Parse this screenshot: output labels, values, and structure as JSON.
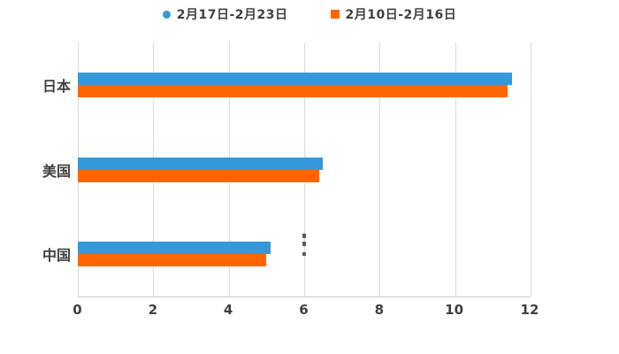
{
  "chart_data": {
    "type": "bar",
    "orientation": "horizontal",
    "title": "",
    "xlabel": "",
    "ylabel": "",
    "categories": [
      "日本",
      "美国",
      "中国"
    ],
    "series": [
      {
        "name": "2月17日-2月23日",
        "color": "#3498db",
        "marker": "circle",
        "values": [
          11.5,
          6.5,
          5.1
        ]
      },
      {
        "name": "2月10日-2月16日",
        "color": "#ff6600",
        "marker": "square",
        "values": [
          11.4,
          6.4,
          5.0
        ]
      }
    ],
    "xlim": [
      0,
      12
    ],
    "xticks": [
      0,
      2,
      4,
      6,
      8,
      10,
      12
    ],
    "grid": true,
    "legend_position": "top",
    "colors": {
      "background": "#ffffff",
      "gridline": "#d9d9d9",
      "axis_line": "#c9c9c9",
      "text": "#404040"
    }
  }
}
